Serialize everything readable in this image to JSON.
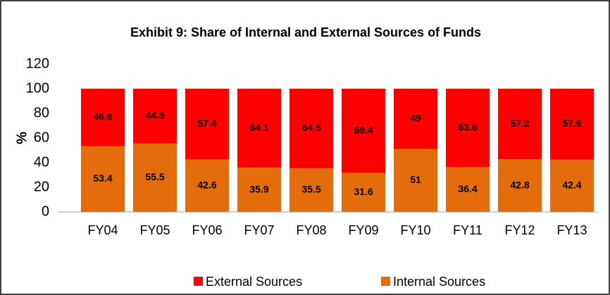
{
  "chart_data": {
    "type": "stacked_bar",
    "title": "Exhibit 9: Share of Internal and External Sources of Funds",
    "y_label": "%",
    "categories": [
      "FY04",
      "FY05",
      "FY06",
      "FY07",
      "FY08",
      "FY09",
      "FY10",
      "FY11",
      "FY12",
      "FY13"
    ],
    "series": [
      {
        "name": "External Sources",
        "color": "#ff0000",
        "values": [
          46.6,
          44.5,
          57.4,
          64.1,
          64.5,
          68.4,
          49,
          63.6,
          57.2,
          57.6
        ]
      },
      {
        "name": "Internal Sources",
        "color": "#e46c0a",
        "values": [
          53.4,
          55.5,
          42.6,
          35.9,
          35.5,
          31.6,
          51,
          36.4,
          42.8,
          42.4
        ]
      }
    ],
    "ylim": [
      0,
      120
    ],
    "yticks": [
      0,
      20,
      40,
      60,
      80,
      100,
      120
    ],
    "grid": false,
    "legend": "bottom"
  }
}
